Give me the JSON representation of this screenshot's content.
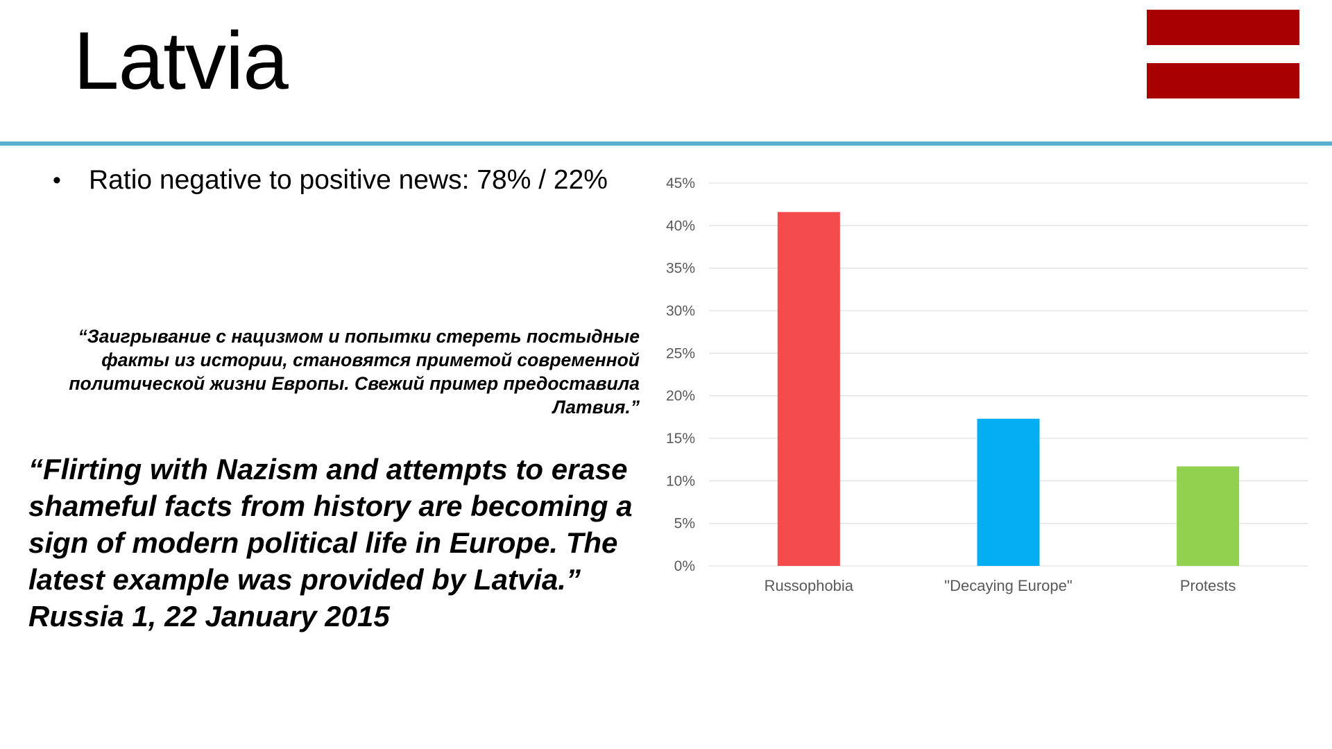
{
  "slide": {
    "title": "Latvia",
    "bullet_symbol": "•",
    "bullet_text": "Ratio negative to positive news: 78% / 22%",
    "quote_ru": "“Заигрывание с нацизмом и попытки стереть постыдные факты из истории, становятся приметой современной политической жизни Европы. Свежий пример предоставила Латвия.”",
    "quote_en": "“Flirting with Nazism and attempts to erase shameful facts from history are becoming a sign of modern political life in Europe. The latest example was provided by Latvia.”",
    "quote_source": "Russia 1, 22 January 2015"
  },
  "flag": {
    "name": "latvia-flag",
    "colors": [
      "#a80000",
      "#ffffff",
      "#a80000"
    ]
  },
  "colors": {
    "rule": "#5aaed0",
    "grid": "#e0e0e0",
    "axis_text": "#595959"
  },
  "chart_data": {
    "type": "bar",
    "title": "",
    "xlabel": "",
    "ylabel": "",
    "categories": [
      "Russophobia",
      "\"Decaying Europe\"",
      "Protests"
    ],
    "values": [
      41.6,
      17.3,
      11.7
    ],
    "colors": [
      "#f44b4d",
      "#04aef0",
      "#92d050"
    ],
    "ylim": [
      0,
      45
    ],
    "yticks": [
      0,
      5,
      10,
      15,
      20,
      25,
      30,
      35,
      40,
      45
    ],
    "ytick_labels": [
      "0%",
      "5%",
      "10%",
      "15%",
      "20%",
      "25%",
      "30%",
      "35%",
      "40%",
      "45%"
    ],
    "grid": true,
    "legend": "none"
  }
}
